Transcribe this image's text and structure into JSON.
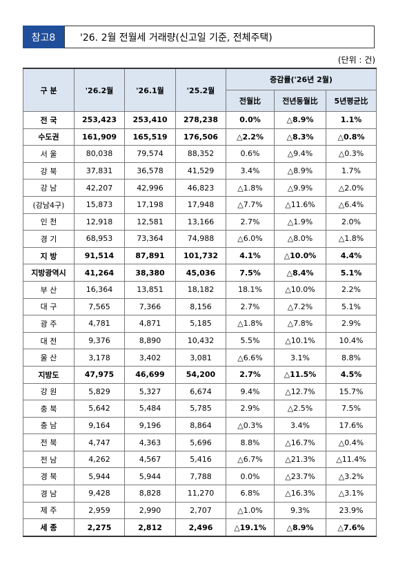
{
  "header": {
    "tag": "참고8",
    "title": "'26. 2월 전월세 거래량(신고일 기준, 전체주택)"
  },
  "unit": "(단위 : 건)",
  "table": {
    "columns": [
      "구 분",
      "'26.2월",
      "'26.1월",
      "'25.2월"
    ],
    "group_header": "증감률('26년 2월)",
    "sub_columns": [
      "전월比",
      "전년동월比",
      "5년평균比"
    ],
    "rows": [
      [
        "전 국",
        "253,423",
        "253,410",
        "278,238",
        "0.0%",
        "△8.9%",
        "1.1%"
      ],
      [
        "수도권",
        "161,909",
        "165,519",
        "176,506",
        "△2.2%",
        "△8.3%",
        "△0.8%"
      ],
      [
        "서 울",
        "80,038",
        "79,574",
        "88,352",
        "0.6%",
        "△9.4%",
        "△0.3%"
      ],
      [
        "강 북",
        "37,831",
        "36,578",
        "41,529",
        "3.4%",
        "△8.9%",
        "1.7%"
      ],
      [
        "강 남",
        "42,207",
        "42,996",
        "46,823",
        "△1.8%",
        "△9.9%",
        "△2.0%"
      ],
      [
        "(강남4구)",
        "15,873",
        "17,198",
        "17,948",
        "△7.7%",
        "△11.6%",
        "△6.4%"
      ],
      [
        "인 천",
        "12,918",
        "12,581",
        "13,166",
        "2.7%",
        "△1.9%",
        "2.0%"
      ],
      [
        "경 기",
        "68,953",
        "73,364",
        "74,988",
        "△6.0%",
        "△8.0%",
        "△1.8%"
      ],
      [
        "지 방",
        "91,514",
        "87,891",
        "101,732",
        "4.1%",
        "△10.0%",
        "4.4%"
      ],
      [
        "지방광역시",
        "41,264",
        "38,380",
        "45,036",
        "7.5%",
        "△8.4%",
        "5.1%"
      ],
      [
        "부 산",
        "16,364",
        "13,851",
        "18,182",
        "18.1%",
        "△10.0%",
        "2.2%"
      ],
      [
        "대 구",
        "7,565",
        "7,366",
        "8,156",
        "2.7%",
        "△7.2%",
        "5.1%"
      ],
      [
        "광 주",
        "4,781",
        "4,871",
        "5,185",
        "△1.8%",
        "△7.8%",
        "2.9%"
      ],
      [
        "대 전",
        "9,376",
        "8,890",
        "10,432",
        "5.5%",
        "△10.1%",
        "10.4%"
      ],
      [
        "울 산",
        "3,178",
        "3,402",
        "3,081",
        "△6.6%",
        "3.1%",
        "8.8%"
      ],
      [
        "지방도",
        "47,975",
        "46,699",
        "54,200",
        "2.7%",
        "△11.5%",
        "4.5%"
      ],
      [
        "강 원",
        "5,829",
        "5,327",
        "6,674",
        "9.4%",
        "△12.7%",
        "15.7%"
      ],
      [
        "충 북",
        "5,642",
        "5,484",
        "5,785",
        "2.9%",
        "△2.5%",
        "7.5%"
      ],
      [
        "충 남",
        "9,164",
        "9,196",
        "8,864",
        "△0.3%",
        "3.4%",
        "17.6%"
      ],
      [
        "전 북",
        "4,747",
        "4,363",
        "5,696",
        "8.8%",
        "△16.7%",
        "△0.4%"
      ],
      [
        "전 남",
        "4,262",
        "4,567",
        "5,416",
        "△6.7%",
        "△21.3%",
        "△11.4%"
      ],
      [
        "경 북",
        "5,944",
        "5,944",
        "7,788",
        "0.0%",
        "△23.7%",
        "△3.2%"
      ],
      [
        "경 남",
        "9,428",
        "8,828",
        "11,270",
        "6.8%",
        "△16.3%",
        "△3.1%"
      ],
      [
        "제 주",
        "2,959",
        "2,990",
        "2,707",
        "△1.0%",
        "9.3%",
        "23.9%"
      ],
      [
        "세 종",
        "2,275",
        "2,812",
        "2,496",
        "△19.1%",
        "△8.9%",
        "△7.6%"
      ]
    ]
  }
}
